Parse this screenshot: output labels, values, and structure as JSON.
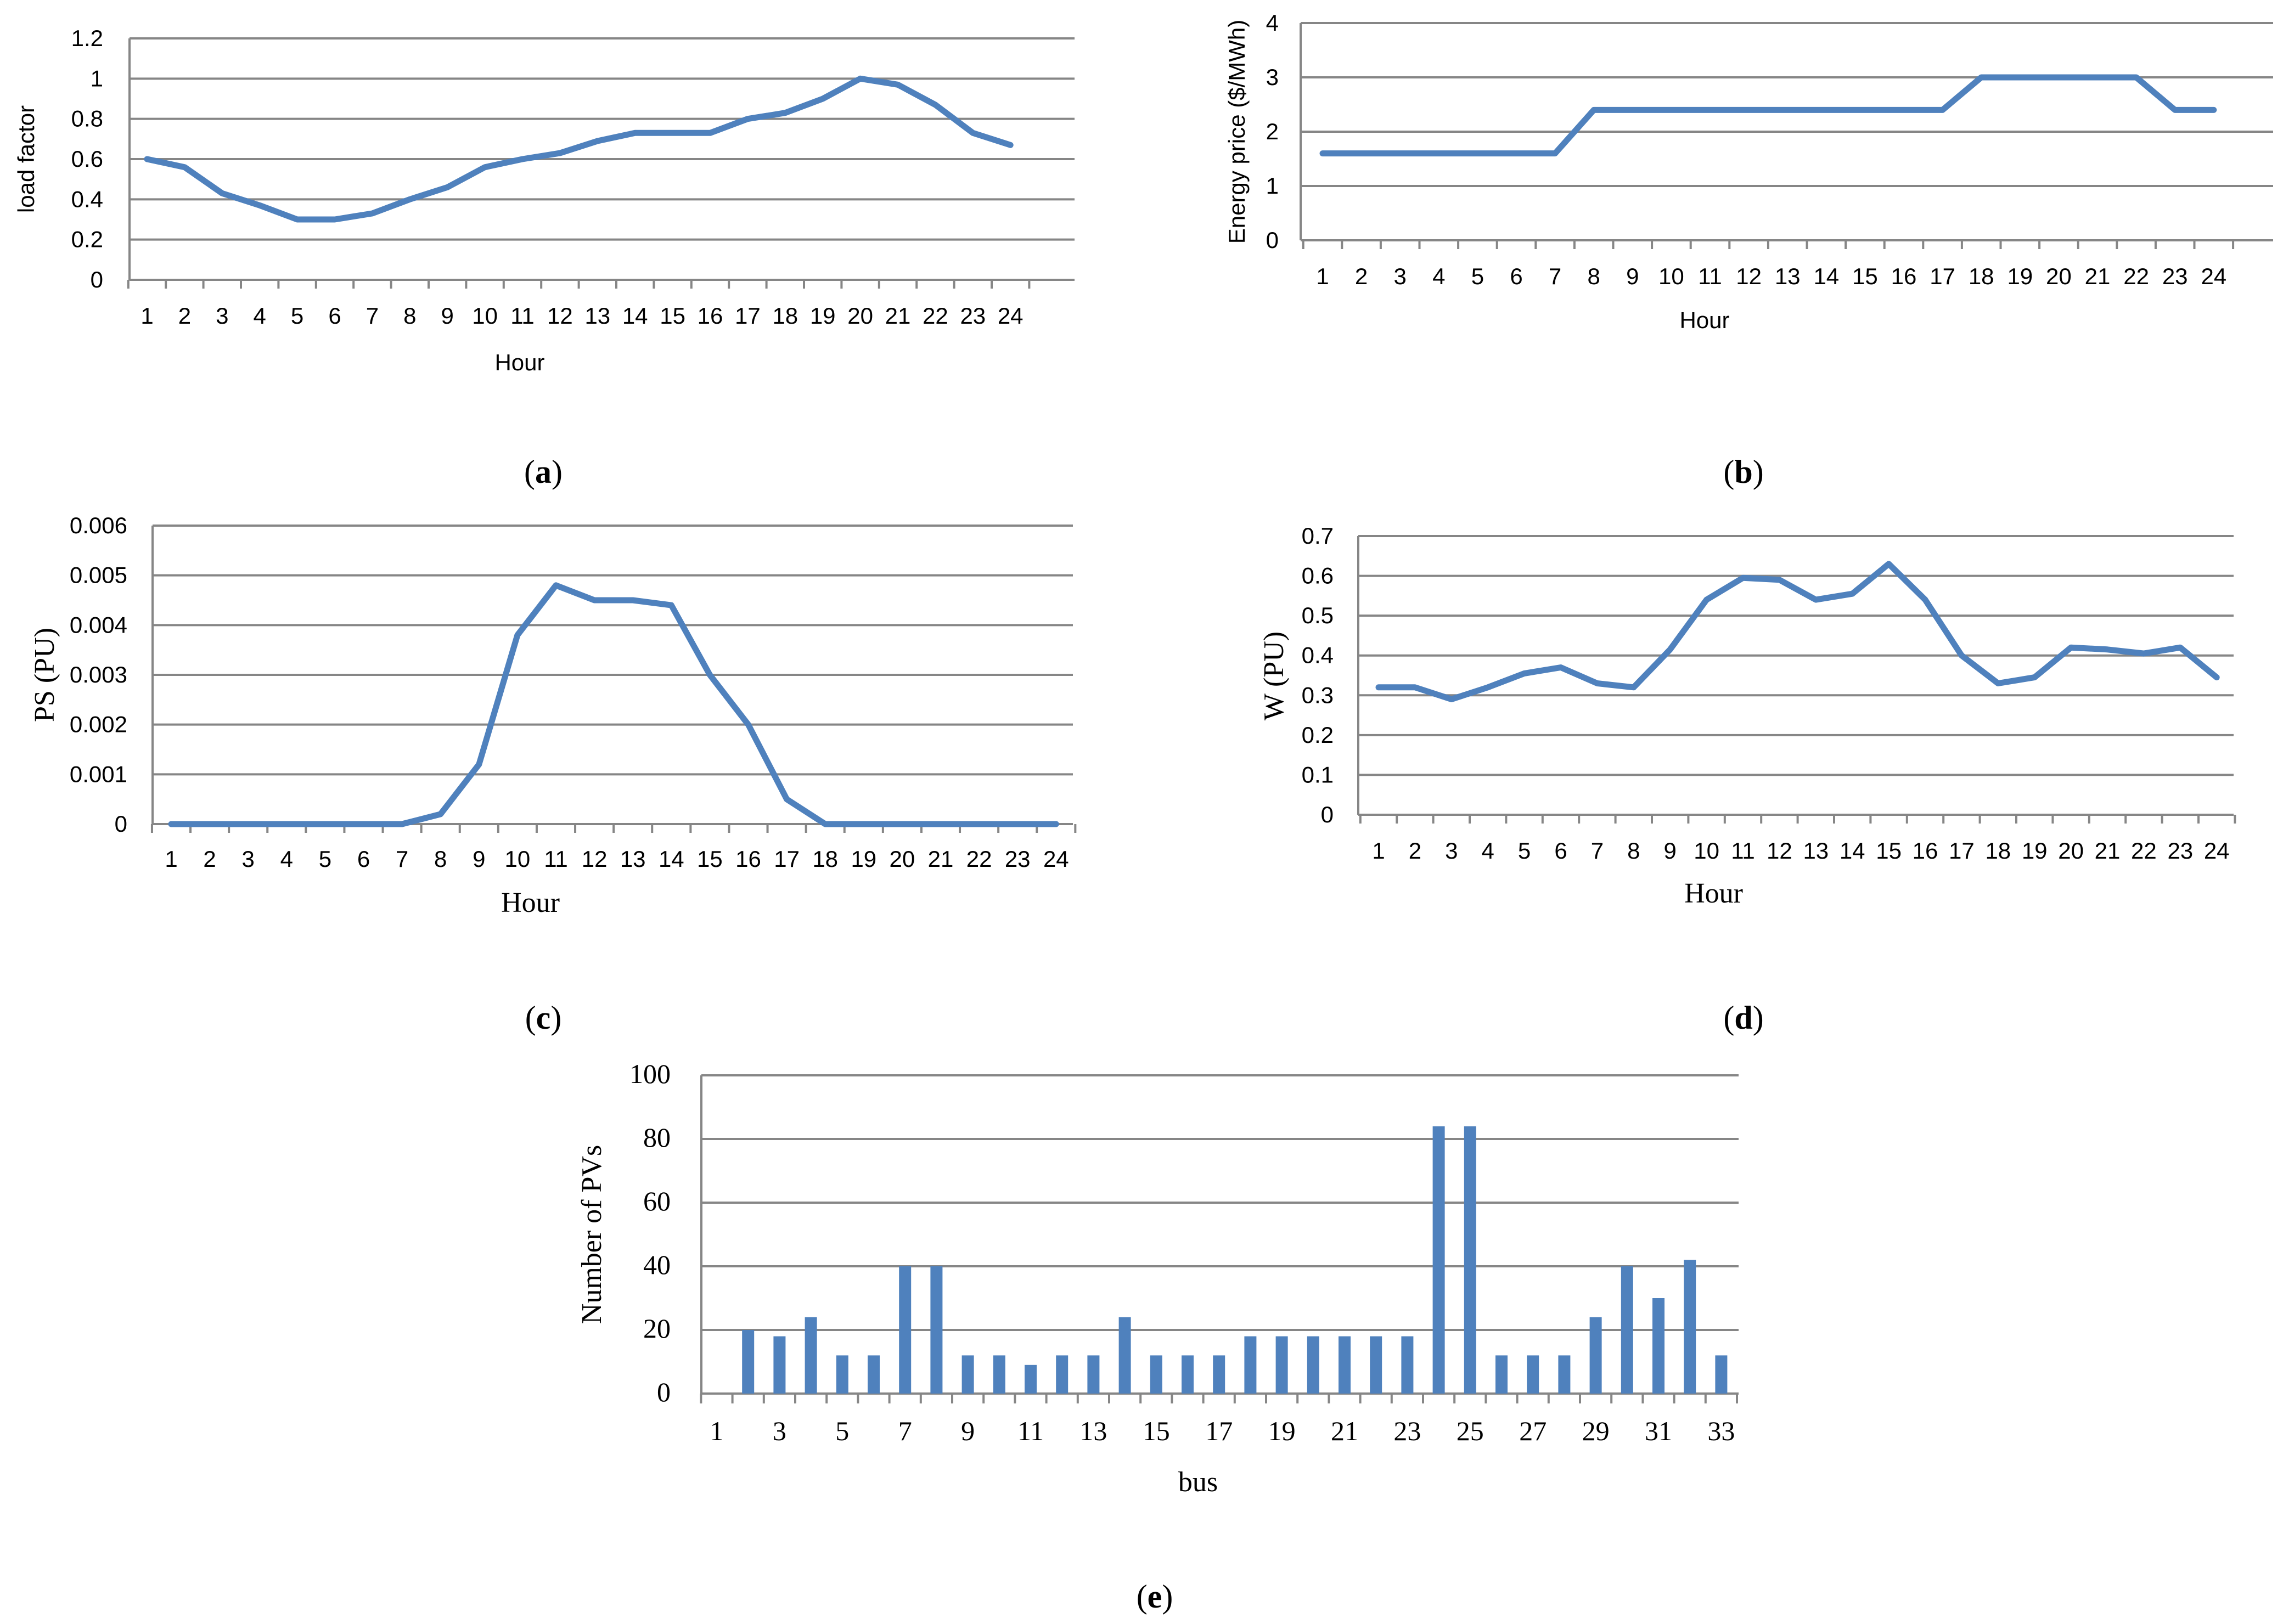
{
  "colors": {
    "series": "#4f81bd",
    "grid": "#868686",
    "text": "#000000"
  },
  "chart_data": [
    {
      "id": "a",
      "type": "line",
      "caption": "a",
      "xlabel": "Hour",
      "ylabel": "load factor",
      "categories": [
        "1",
        "2",
        "3",
        "4",
        "5",
        "6",
        "7",
        "8",
        "9",
        "10",
        "11",
        "12",
        "13",
        "14",
        "15",
        "16",
        "17",
        "18",
        "19",
        "20",
        "21",
        "22",
        "23",
        "24"
      ],
      "ylim": [
        0,
        1.2
      ],
      "yticks": [
        "0",
        "0.2",
        "0.4",
        "0.6",
        "0.8",
        "1",
        "1.2"
      ],
      "values": [
        0.6,
        0.56,
        0.43,
        0.37,
        0.3,
        0.3,
        0.33,
        0.4,
        0.46,
        0.56,
        0.6,
        0.63,
        0.69,
        0.73,
        0.73,
        0.73,
        0.8,
        0.83,
        0.9,
        1.0,
        0.97,
        0.87,
        0.73,
        0.67
      ],
      "grid": true
    },
    {
      "id": "b",
      "type": "line",
      "caption": "b",
      "xlabel": "Hour",
      "ylabel": "Energy price ($/MWh)",
      "categories": [
        "1",
        "2",
        "3",
        "4",
        "5",
        "6",
        "7",
        "8",
        "9",
        "10",
        "11",
        "12",
        "13",
        "14",
        "15",
        "16",
        "17",
        "18",
        "19",
        "20",
        "21",
        "22",
        "23",
        "24"
      ],
      "ylim": [
        0,
        4
      ],
      "yticks": [
        "0",
        "1",
        "2",
        "3",
        "4"
      ],
      "values": [
        1.6,
        1.6,
        1.6,
        1.6,
        1.6,
        1.6,
        1.6,
        2.4,
        2.4,
        2.4,
        2.4,
        2.4,
        2.4,
        2.4,
        2.4,
        2.4,
        2.4,
        3.0,
        3.0,
        3.0,
        3.0,
        3.0,
        2.4,
        2.4
      ],
      "grid": true
    },
    {
      "id": "c",
      "type": "line",
      "caption": "c",
      "xlabel": "Hour",
      "ylabel": "PS (PU)",
      "categories": [
        "1",
        "2",
        "3",
        "4",
        "5",
        "6",
        "7",
        "8",
        "9",
        "10",
        "11",
        "12",
        "13",
        "14",
        "15",
        "16",
        "17",
        "18",
        "19",
        "20",
        "21",
        "22",
        "23",
        "24"
      ],
      "ylim": [
        0,
        0.006
      ],
      "yticks": [
        "0",
        "0.001",
        "0.002",
        "0.003",
        "0.004",
        "0.005",
        "0.006"
      ],
      "values": [
        0,
        0,
        0,
        0,
        0,
        0,
        0,
        0.0002,
        0.0012,
        0.0038,
        0.0048,
        0.0045,
        0.0045,
        0.0044,
        0.003,
        0.002,
        0.0005,
        0,
        0,
        0,
        0,
        0,
        0,
        0
      ],
      "grid": true
    },
    {
      "id": "d",
      "type": "line",
      "caption": "d",
      "xlabel": "Hour",
      "ylabel": "W (PU)",
      "categories": [
        "1",
        "2",
        "3",
        "4",
        "5",
        "6",
        "7",
        "8",
        "9",
        "10",
        "11",
        "12",
        "13",
        "14",
        "15",
        "16",
        "17",
        "18",
        "19",
        "20",
        "21",
        "22",
        "23",
        "24"
      ],
      "ylim": [
        0,
        0.7
      ],
      "yticks": [
        "0",
        "0.1",
        "0.2",
        "0.3",
        "0.4",
        "0.5",
        "0.6",
        "0.7"
      ],
      "values": [
        0.32,
        0.32,
        0.29,
        0.32,
        0.355,
        0.37,
        0.33,
        0.32,
        0.415,
        0.54,
        0.595,
        0.59,
        0.54,
        0.555,
        0.63,
        0.54,
        0.4,
        0.33,
        0.345,
        0.42,
        0.415,
        0.405,
        0.42,
        0.345
      ],
      "grid": true
    },
    {
      "id": "e",
      "type": "bar",
      "caption": "e",
      "xlabel": "bus",
      "ylabel": "Number of PVs",
      "categories": [
        "1",
        "2",
        "3",
        "4",
        "5",
        "6",
        "7",
        "8",
        "9",
        "10",
        "11",
        "12",
        "13",
        "14",
        "15",
        "16",
        "17",
        "18",
        "19",
        "20",
        "21",
        "22",
        "23",
        "24",
        "25",
        "26",
        "27",
        "28",
        "29",
        "30",
        "31",
        "32",
        "33"
      ],
      "tick_labels": [
        "1",
        "3",
        "5",
        "7",
        "9",
        "11",
        "13",
        "15",
        "17",
        "19",
        "21",
        "23",
        "25",
        "27",
        "29",
        "31",
        "33"
      ],
      "ylim": [
        0,
        100
      ],
      "yticks": [
        "0",
        "20",
        "40",
        "60",
        "80",
        "100"
      ],
      "values": [
        0,
        20,
        18,
        24,
        12,
        12,
        40,
        40,
        12,
        12,
        9,
        12,
        12,
        24,
        12,
        12,
        12,
        18,
        18,
        18,
        18,
        18,
        18,
        84,
        84,
        12,
        12,
        12,
        24,
        40,
        30,
        42,
        12
      ],
      "grid": true
    }
  ]
}
